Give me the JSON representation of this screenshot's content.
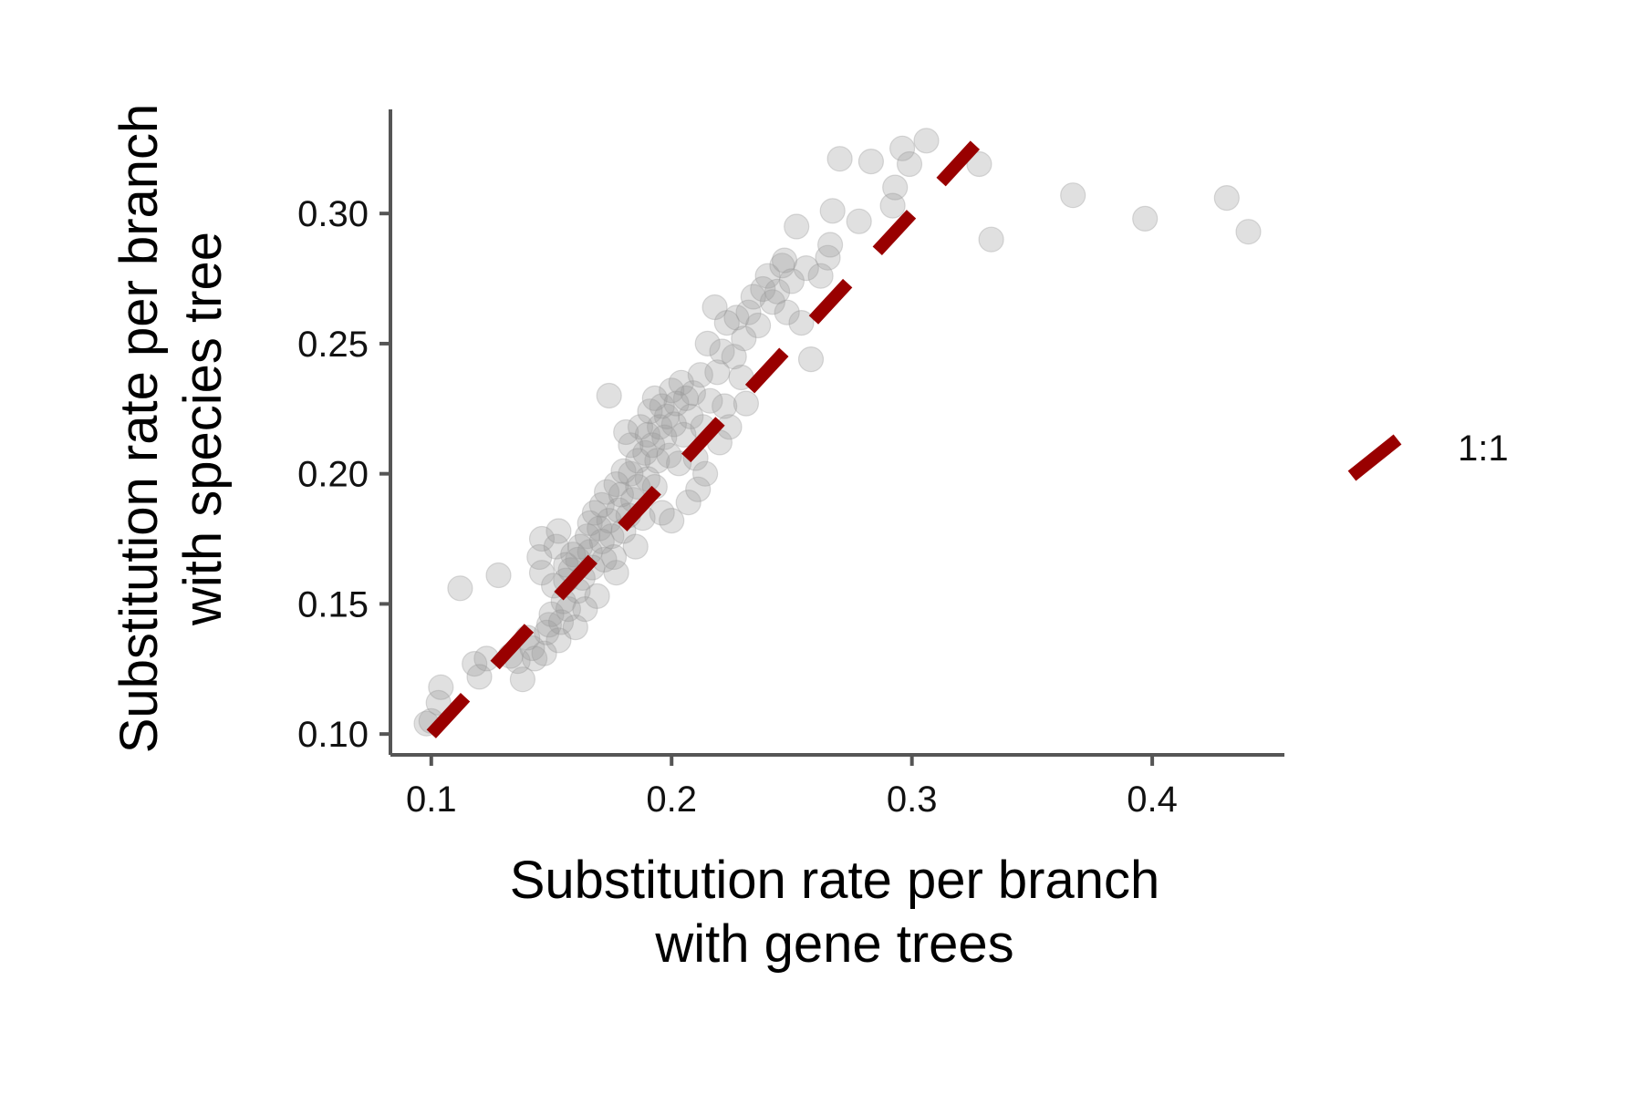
{
  "chart_data": {
    "type": "scatter",
    "title": "",
    "xlabel": [
      "Substitution rate per branch",
      "with gene trees"
    ],
    "ylabel": [
      "Substitution rate per branch",
      "with species tree"
    ],
    "xlim": [
      0.083,
      0.455
    ],
    "ylim": [
      0.092,
      0.34
    ],
    "x_ticks": [
      0.1,
      0.2,
      0.3,
      0.4
    ],
    "x_tick_labels": [
      "0.1",
      "0.2",
      "0.3",
      "0.4"
    ],
    "y_ticks": [
      0.1,
      0.15,
      0.2,
      0.25,
      0.3
    ],
    "y_tick_labels": [
      "0.10",
      "0.15",
      "0.20",
      "0.25",
      "0.30"
    ],
    "grid": false,
    "legend": {
      "position": "right",
      "entries": [
        {
          "label": "1:1",
          "style": "dashed-line",
          "color": "#990000"
        }
      ]
    },
    "reference_line": {
      "label": "1:1",
      "slope": 1,
      "intercept": 0,
      "x_range": [
        0.1,
        0.333
      ],
      "color": "#990000",
      "style": "dashed"
    },
    "point_color": "#999999",
    "points": [
      [
        0.098,
        0.104
      ],
      [
        0.1,
        0.105
      ],
      [
        0.103,
        0.112
      ],
      [
        0.104,
        0.118
      ],
      [
        0.112,
        0.156
      ],
      [
        0.118,
        0.127
      ],
      [
        0.12,
        0.122
      ],
      [
        0.123,
        0.129
      ],
      [
        0.128,
        0.161
      ],
      [
        0.133,
        0.13
      ],
      [
        0.136,
        0.128
      ],
      [
        0.138,
        0.121
      ],
      [
        0.14,
        0.137
      ],
      [
        0.142,
        0.133
      ],
      [
        0.143,
        0.129
      ],
      [
        0.145,
        0.168
      ],
      [
        0.146,
        0.175
      ],
      [
        0.146,
        0.162
      ],
      [
        0.147,
        0.131
      ],
      [
        0.148,
        0.139
      ],
      [
        0.149,
        0.142
      ],
      [
        0.15,
        0.146
      ],
      [
        0.151,
        0.157
      ],
      [
        0.152,
        0.172
      ],
      [
        0.153,
        0.178
      ],
      [
        0.153,
        0.136
      ],
      [
        0.154,
        0.143
      ],
      [
        0.155,
        0.151
      ],
      [
        0.156,
        0.159
      ],
      [
        0.156,
        0.165
      ],
      [
        0.157,
        0.148
      ],
      [
        0.158,
        0.163
      ],
      [
        0.159,
        0.169
      ],
      [
        0.16,
        0.141
      ],
      [
        0.161,
        0.155
      ],
      [
        0.161,
        0.167
      ],
      [
        0.162,
        0.172
      ],
      [
        0.163,
        0.16
      ],
      [
        0.164,
        0.148
      ],
      [
        0.165,
        0.176
      ],
      [
        0.166,
        0.181
      ],
      [
        0.166,
        0.17
      ],
      [
        0.167,
        0.164
      ],
      [
        0.168,
        0.185
      ],
      [
        0.169,
        0.153
      ],
      [
        0.17,
        0.179
      ],
      [
        0.171,
        0.188
      ],
      [
        0.171,
        0.174
      ],
      [
        0.172,
        0.167
      ],
      [
        0.173,
        0.193
      ],
      [
        0.174,
        0.182
      ],
      [
        0.174,
        0.23
      ],
      [
        0.175,
        0.176
      ],
      [
        0.176,
        0.168
      ],
      [
        0.177,
        0.162
      ],
      [
        0.177,
        0.196
      ],
      [
        0.178,
        0.186
      ],
      [
        0.179,
        0.192
      ],
      [
        0.18,
        0.201
      ],
      [
        0.18,
        0.178
      ],
      [
        0.181,
        0.216
      ],
      [
        0.182,
        0.184
      ],
      [
        0.183,
        0.2
      ],
      [
        0.183,
        0.211
      ],
      [
        0.184,
        0.19
      ],
      [
        0.185,
        0.172
      ],
      [
        0.186,
        0.205
      ],
      [
        0.186,
        0.195
      ],
      [
        0.187,
        0.218
      ],
      [
        0.188,
        0.183
      ],
      [
        0.189,
        0.208
      ],
      [
        0.19,
        0.198
      ],
      [
        0.19,
        0.215
      ],
      [
        0.191,
        0.224
      ],
      [
        0.192,
        0.211
      ],
      [
        0.193,
        0.195
      ],
      [
        0.193,
        0.229
      ],
      [
        0.194,
        0.205
      ],
      [
        0.195,
        0.218
      ],
      [
        0.196,
        0.185
      ],
      [
        0.196,
        0.226
      ],
      [
        0.197,
        0.214
      ],
      [
        0.198,
        0.222
      ],
      [
        0.199,
        0.207
      ],
      [
        0.2,
        0.182
      ],
      [
        0.2,
        0.232
      ],
      [
        0.201,
        0.219
      ],
      [
        0.202,
        0.227
      ],
      [
        0.203,
        0.204
      ],
      [
        0.204,
        0.235
      ],
      [
        0.205,
        0.215
      ],
      [
        0.206,
        0.229
      ],
      [
        0.207,
        0.189
      ],
      [
        0.208,
        0.222
      ],
      [
        0.209,
        0.231
      ],
      [
        0.21,
        0.206
      ],
      [
        0.211,
        0.194
      ],
      [
        0.212,
        0.238
      ],
      [
        0.213,
        0.218
      ],
      [
        0.214,
        0.2
      ],
      [
        0.215,
        0.25
      ],
      [
        0.216,
        0.228
      ],
      [
        0.218,
        0.264
      ],
      [
        0.219,
        0.239
      ],
      [
        0.22,
        0.212
      ],
      [
        0.221,
        0.247
      ],
      [
        0.222,
        0.226
      ],
      [
        0.223,
        0.258
      ],
      [
        0.224,
        0.218
      ],
      [
        0.226,
        0.245
      ],
      [
        0.227,
        0.26
      ],
      [
        0.229,
        0.237
      ],
      [
        0.23,
        0.252
      ],
      [
        0.231,
        0.227
      ],
      [
        0.232,
        0.262
      ],
      [
        0.234,
        0.268
      ],
      [
        0.236,
        0.257
      ],
      [
        0.238,
        0.271
      ],
      [
        0.24,
        0.276
      ],
      [
        0.242,
        0.266
      ],
      [
        0.244,
        0.27
      ],
      [
        0.246,
        0.28
      ],
      [
        0.247,
        0.282
      ],
      [
        0.248,
        0.262
      ],
      [
        0.25,
        0.274
      ],
      [
        0.252,
        0.295
      ],
      [
        0.254,
        0.258
      ],
      [
        0.256,
        0.279
      ],
      [
        0.258,
        0.244
      ],
      [
        0.262,
        0.276
      ],
      [
        0.265,
        0.283
      ],
      [
        0.266,
        0.288
      ],
      [
        0.267,
        0.301
      ],
      [
        0.27,
        0.321
      ],
      [
        0.278,
        0.297
      ],
      [
        0.283,
        0.32
      ],
      [
        0.292,
        0.303
      ],
      [
        0.293,
        0.31
      ],
      [
        0.296,
        0.325
      ],
      [
        0.299,
        0.319
      ],
      [
        0.306,
        0.328
      ],
      [
        0.328,
        0.319
      ],
      [
        0.333,
        0.29
      ],
      [
        0.367,
        0.307
      ],
      [
        0.397,
        0.298
      ],
      [
        0.431,
        0.306
      ],
      [
        0.44,
        0.293
      ]
    ]
  }
}
